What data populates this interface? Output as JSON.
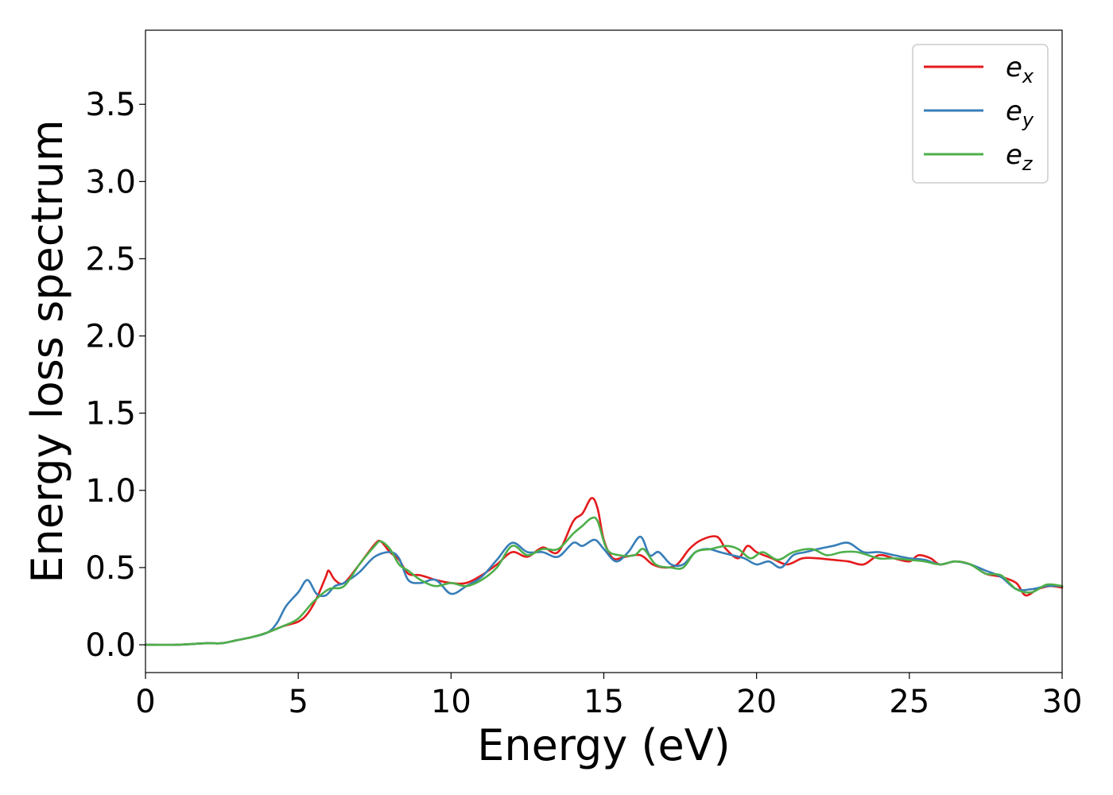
{
  "chart_data": {
    "type": "line",
    "xlabel": "Energy (eV)",
    "ylabel": "Energy loss spectrum",
    "xlim": [
      0,
      30
    ],
    "ylim": [
      -0.18,
      3.98
    ],
    "xticks": [
      0,
      5,
      10,
      15,
      20,
      25,
      30
    ],
    "xtick_labels": [
      "0",
      "5",
      "10",
      "15",
      "20",
      "25",
      "30"
    ],
    "yticks": [
      0.0,
      0.5,
      1.0,
      1.5,
      2.0,
      2.5,
      3.0,
      3.5
    ],
    "ytick_labels": [
      "0.0",
      "0.5",
      "1.0",
      "1.5",
      "2.0",
      "2.5",
      "3.0",
      "3.5"
    ],
    "grid": false,
    "legend_position": "top-right",
    "series": [
      {
        "name": "e",
        "subscript": "x",
        "color": "#e41a1c",
        "x": [
          0,
          1,
          2,
          2.5,
          3,
          3.5,
          4,
          4.5,
          5,
          5.3,
          5.6,
          5.9,
          6.0,
          6.2,
          6.5,
          7.0,
          7.5,
          7.7,
          8.0,
          8.3,
          8.6,
          9.0,
          9.5,
          10,
          10.5,
          11,
          11.5,
          12,
          12.5,
          13,
          13.5,
          14,
          14.3,
          14.6,
          14.8,
          15,
          15.3,
          15.7,
          16.2,
          16.6,
          17,
          17.4,
          17.8,
          18.2,
          18.7,
          19,
          19.4,
          19.7,
          20,
          20.5,
          21,
          21.5,
          22,
          22.5,
          23,
          23.5,
          24,
          24.5,
          25,
          25.3,
          25.7,
          26,
          26.5,
          27,
          27.5,
          28,
          28.5,
          28.8,
          29.2,
          29.6,
          30
        ],
        "y": [
          0.0,
          0.0,
          0.01,
          0.01,
          0.03,
          0.05,
          0.08,
          0.12,
          0.15,
          0.2,
          0.3,
          0.44,
          0.48,
          0.42,
          0.4,
          0.52,
          0.65,
          0.67,
          0.6,
          0.55,
          0.46,
          0.45,
          0.42,
          0.4,
          0.4,
          0.45,
          0.52,
          0.6,
          0.57,
          0.63,
          0.6,
          0.8,
          0.85,
          0.95,
          0.88,
          0.68,
          0.56,
          0.57,
          0.58,
          0.52,
          0.5,
          0.52,
          0.62,
          0.68,
          0.7,
          0.62,
          0.56,
          0.64,
          0.6,
          0.56,
          0.52,
          0.56,
          0.56,
          0.55,
          0.54,
          0.52,
          0.58,
          0.56,
          0.54,
          0.58,
          0.56,
          0.52,
          0.54,
          0.52,
          0.46,
          0.44,
          0.4,
          0.32,
          0.36,
          0.38,
          0.37
        ]
      },
      {
        "name": "e",
        "subscript": "y",
        "color": "#377eb8",
        "x": [
          0,
          1,
          2,
          2.5,
          3,
          3.5,
          4,
          4.3,
          4.6,
          5.0,
          5.3,
          5.6,
          5.9,
          6.2,
          6.5,
          7.0,
          7.5,
          8.0,
          8.3,
          8.6,
          9.0,
          9.5,
          10.0,
          10.5,
          11,
          11.5,
          12,
          12.5,
          13,
          13.5,
          14,
          14.3,
          14.7,
          15,
          15.4,
          15.8,
          16.2,
          16.5,
          16.8,
          17.2,
          17.6,
          18,
          18.4,
          18.8,
          19.2,
          19.6,
          20,
          20.4,
          20.8,
          21.2,
          21.6,
          22,
          22.5,
          23,
          23.5,
          24,
          24.5,
          25,
          25.5,
          26,
          26.5,
          27,
          27.5,
          28,
          28.5,
          29,
          29.5,
          30
        ],
        "y": [
          0.0,
          0.0,
          0.01,
          0.01,
          0.03,
          0.05,
          0.08,
          0.14,
          0.25,
          0.34,
          0.42,
          0.33,
          0.32,
          0.38,
          0.4,
          0.47,
          0.57,
          0.6,
          0.56,
          0.42,
          0.4,
          0.42,
          0.33,
          0.38,
          0.44,
          0.55,
          0.66,
          0.6,
          0.6,
          0.57,
          0.66,
          0.64,
          0.68,
          0.62,
          0.54,
          0.6,
          0.7,
          0.58,
          0.6,
          0.52,
          0.52,
          0.6,
          0.62,
          0.6,
          0.58,
          0.56,
          0.52,
          0.54,
          0.5,
          0.58,
          0.6,
          0.62,
          0.64,
          0.66,
          0.6,
          0.6,
          0.58,
          0.56,
          0.55,
          0.52,
          0.54,
          0.52,
          0.48,
          0.44,
          0.36,
          0.36,
          0.38,
          0.38
        ]
      },
      {
        "name": "e",
        "subscript": "z",
        "color": "#4daf4a",
        "x": [
          0,
          1,
          2,
          2.5,
          3,
          3.5,
          4,
          4.5,
          5,
          5.5,
          6.0,
          6.5,
          7.0,
          7.5,
          7.7,
          8.0,
          8.3,
          8.6,
          9.0,
          9.5,
          10,
          10.5,
          11,
          11.5,
          12,
          12.5,
          13,
          13.5,
          14,
          14.3,
          14.6,
          14.8,
          15.1,
          15.5,
          16,
          16.3,
          16.7,
          17.2,
          17.6,
          18,
          18.5,
          19,
          19.4,
          19.8,
          20.2,
          20.7,
          21.2,
          21.8,
          22.3,
          22.8,
          23.3,
          24,
          24.5,
          25,
          25.5,
          26,
          26.5,
          27,
          27.5,
          28,
          28.5,
          29,
          29.5,
          30
        ],
        "y": [
          0.0,
          0.0,
          0.01,
          0.01,
          0.03,
          0.05,
          0.08,
          0.12,
          0.17,
          0.28,
          0.36,
          0.38,
          0.52,
          0.64,
          0.67,
          0.62,
          0.52,
          0.48,
          0.42,
          0.38,
          0.4,
          0.38,
          0.42,
          0.5,
          0.64,
          0.58,
          0.62,
          0.62,
          0.72,
          0.77,
          0.82,
          0.8,
          0.62,
          0.58,
          0.58,
          0.62,
          0.52,
          0.5,
          0.5,
          0.6,
          0.62,
          0.64,
          0.62,
          0.56,
          0.6,
          0.55,
          0.6,
          0.62,
          0.58,
          0.6,
          0.6,
          0.56,
          0.56,
          0.55,
          0.54,
          0.52,
          0.54,
          0.52,
          0.46,
          0.45,
          0.36,
          0.34,
          0.39,
          0.38
        ]
      }
    ]
  }
}
